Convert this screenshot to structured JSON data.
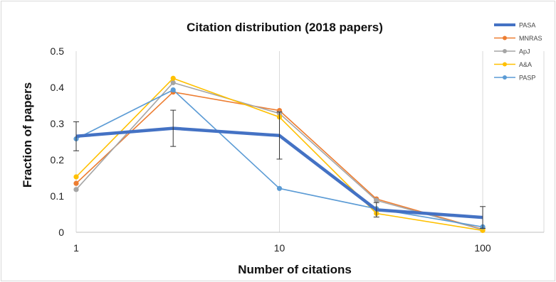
{
  "chart_data": {
    "type": "line",
    "title": "Citation distribution (2018 papers)",
    "xlabel": "Number of citations",
    "ylabel": "Fraction of papers",
    "x_scale": "log",
    "xlim": [
      1,
      200
    ],
    "ylim": [
      0,
      0.5
    ],
    "x_ticks": [
      1,
      10,
      100
    ],
    "x_tick_labels": [
      "1",
      "10",
      "100"
    ],
    "y_ticks": [
      0,
      0.1,
      0.2,
      0.3,
      0.4,
      0.5
    ],
    "y_tick_labels": [
      "0",
      "0.1",
      "0.2",
      "0.3",
      "0.4",
      "0.5"
    ],
    "grid": "vertical",
    "legend_position": "right",
    "x": [
      1,
      3,
      10,
      30,
      100
    ],
    "series": [
      {
        "name": "PASA",
        "color": "#4472C4",
        "width": "thick",
        "values": [
          0.265,
          0.287,
          0.267,
          0.062,
          0.041
        ],
        "error": [
          0.04,
          0.05,
          0.065,
          0.02,
          0.03
        ]
      },
      {
        "name": "MNRAS",
        "color": "#ED7D31",
        "width": "thin",
        "values": [
          0.135,
          0.387,
          0.336,
          0.092,
          0.008
        ]
      },
      {
        "name": "ApJ",
        "color": "#A5A5A5",
        "width": "thin",
        "values": [
          0.118,
          0.413,
          0.328,
          0.088,
          0.007
        ]
      },
      {
        "name": "A&A",
        "color": "#FFC000",
        "width": "thin",
        "values": [
          0.153,
          0.425,
          0.318,
          0.052,
          0.005
        ]
      },
      {
        "name": "PASP",
        "color": "#5B9BD5",
        "width": "thin",
        "values": [
          0.258,
          0.393,
          0.121,
          0.065,
          0.015
        ]
      }
    ]
  }
}
